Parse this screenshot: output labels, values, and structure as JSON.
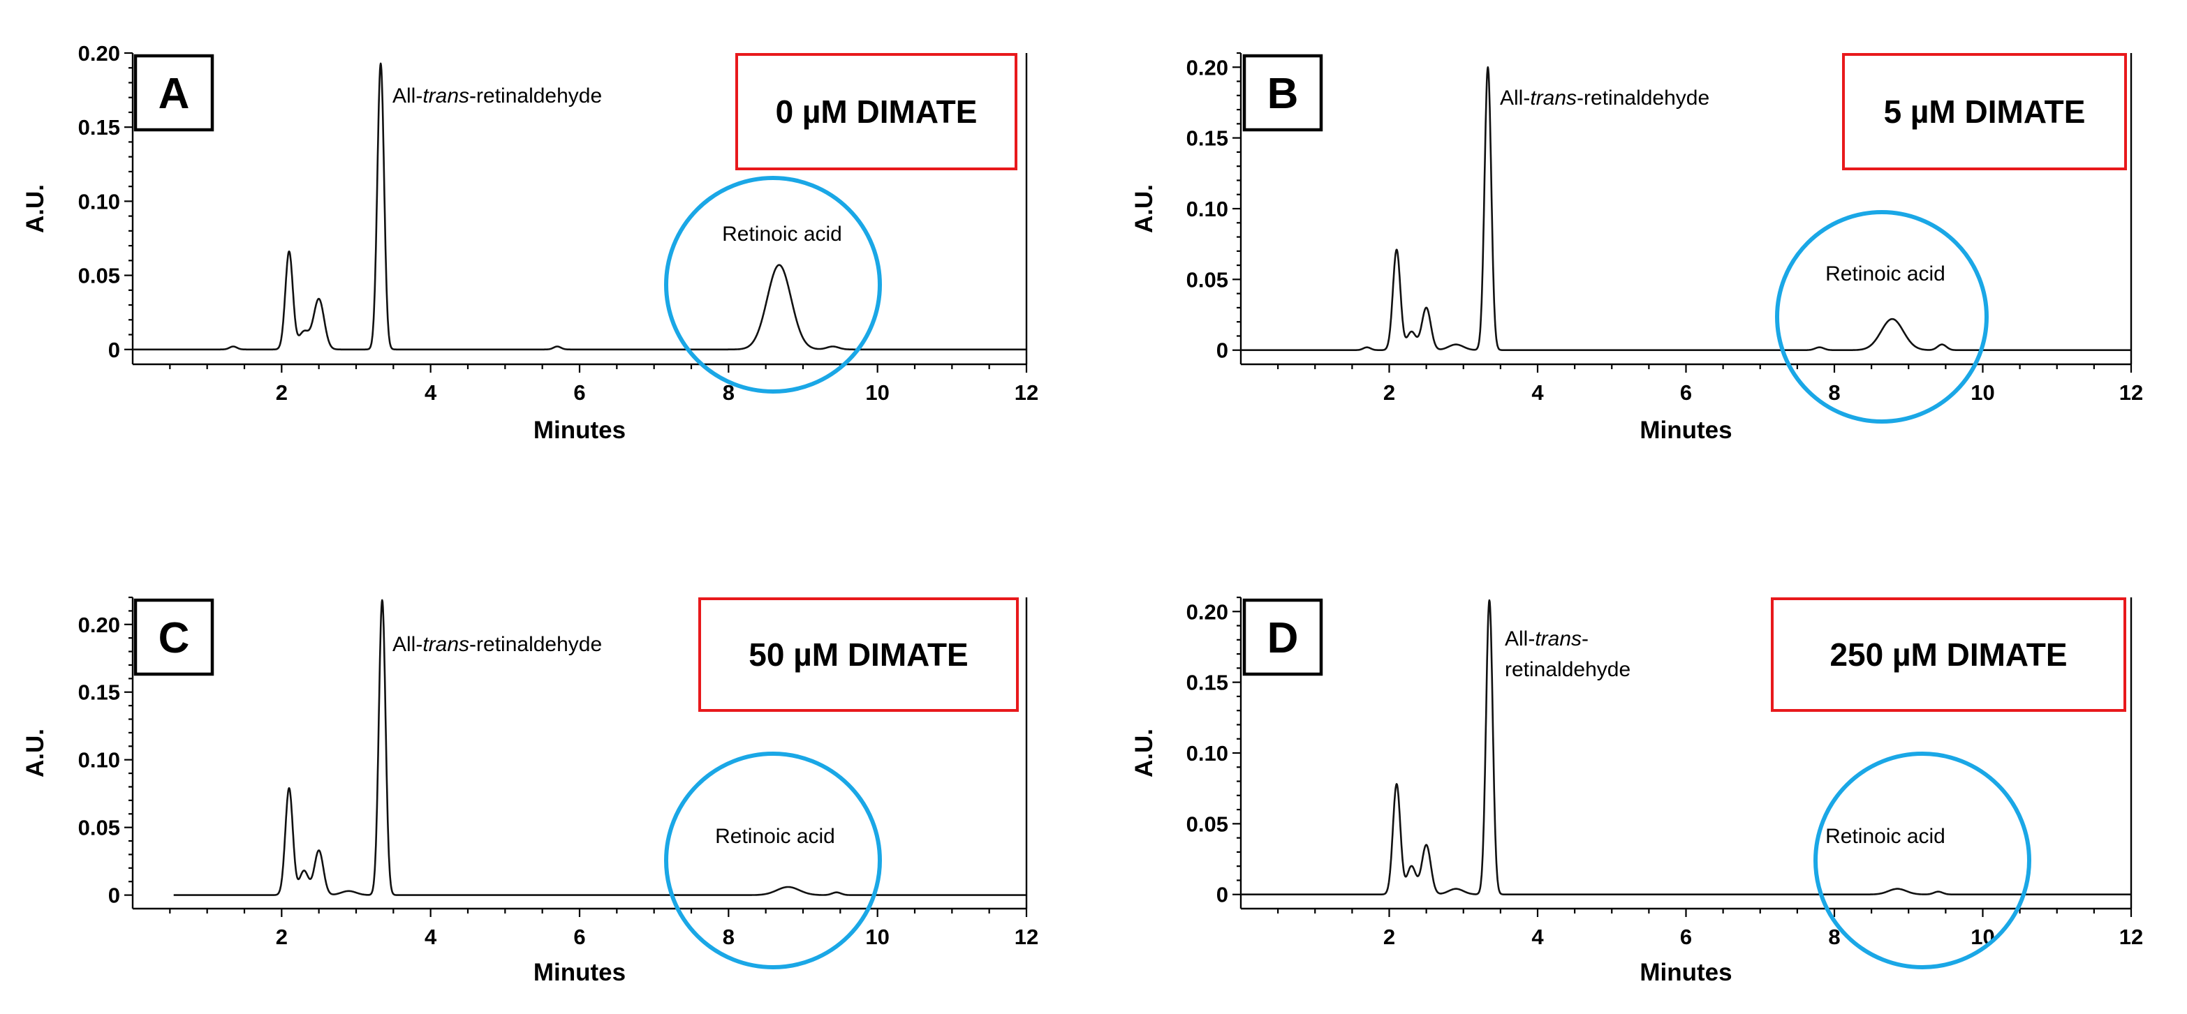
{
  "chart_data": [
    {
      "type": "line",
      "panel": "A",
      "condition": "0 µM DIMATE",
      "xlabel": "Minutes",
      "ylabel": "A.U.",
      "xlim": [
        0,
        12
      ],
      "ylim": [
        -0.01,
        0.2
      ],
      "xticks": [
        "2",
        "4",
        "6",
        "8",
        "10",
        "12"
      ],
      "yticks": [
        "0",
        "0.05",
        "0.10",
        "0.15",
        "0.20"
      ],
      "annotations": {
        "retinaldehyde": [
          "All-",
          "trans",
          "-retinaldehyde"
        ],
        "retinoic_acid": "Retinoic acid"
      },
      "peaks": [
        {
          "center": 1.35,
          "height": 0.002,
          "width": 0.05
        },
        {
          "center": 2.1,
          "height": 0.066,
          "width": 0.05
        },
        {
          "center": 2.3,
          "height": 0.012,
          "width": 0.07
        },
        {
          "center": 2.5,
          "height": 0.034,
          "width": 0.07
        },
        {
          "center": 3.33,
          "height": 0.193,
          "width": 0.045
        },
        {
          "center": 5.7,
          "height": 0.002,
          "width": 0.05
        },
        {
          "center": 8.68,
          "height": 0.057,
          "width": 0.16
        },
        {
          "center": 9.4,
          "height": 0.002,
          "width": 0.08
        }
      ]
    },
    {
      "type": "line",
      "panel": "B",
      "condition": "5 µM DIMATE",
      "xlabel": "Minutes",
      "ylabel": "A.U.",
      "xlim": [
        0,
        12
      ],
      "ylim": [
        -0.01,
        0.21
      ],
      "xticks": [
        "2",
        "4",
        "6",
        "8",
        "10",
        "12"
      ],
      "yticks": [
        "0",
        "0.05",
        "0.10",
        "0.15",
        "0.20"
      ],
      "annotations": {
        "retinaldehyde": [
          "All-",
          "trans",
          "-retinaldehyde"
        ],
        "retinoic_acid": "Retinoic acid"
      },
      "peaks": [
        {
          "center": 1.7,
          "height": 0.002,
          "width": 0.05
        },
        {
          "center": 2.1,
          "height": 0.071,
          "width": 0.05
        },
        {
          "center": 2.3,
          "height": 0.013,
          "width": 0.06
        },
        {
          "center": 2.5,
          "height": 0.03,
          "width": 0.06
        },
        {
          "center": 2.9,
          "height": 0.004,
          "width": 0.1
        },
        {
          "center": 3.33,
          "height": 0.2,
          "width": 0.045
        },
        {
          "center": 7.8,
          "height": 0.002,
          "width": 0.06
        },
        {
          "center": 8.78,
          "height": 0.022,
          "width": 0.15
        },
        {
          "center": 9.45,
          "height": 0.004,
          "width": 0.06
        }
      ]
    },
    {
      "type": "line",
      "panel": "C",
      "condition": "50 µM DIMATE",
      "xlabel": "Minutes",
      "ylabel": "A.U.",
      "xlim": [
        0,
        12
      ],
      "ylim": [
        -0.01,
        0.22
      ],
      "xticks": [
        "2",
        "4",
        "6",
        "8",
        "10",
        "12"
      ],
      "yticks": [
        "0",
        "0.05",
        "0.10",
        "0.15",
        "0.20"
      ],
      "annotations": {
        "retinaldehyde": [
          "All-",
          "trans",
          "-retinaldehyde"
        ],
        "retinoic_acid": "Retinoic acid"
      },
      "peaks": [
        {
          "center": 2.1,
          "height": 0.079,
          "width": 0.05
        },
        {
          "center": 2.3,
          "height": 0.018,
          "width": 0.06
        },
        {
          "center": 2.5,
          "height": 0.033,
          "width": 0.06
        },
        {
          "center": 2.9,
          "height": 0.003,
          "width": 0.1
        },
        {
          "center": 3.35,
          "height": 0.218,
          "width": 0.045
        },
        {
          "center": 8.8,
          "height": 0.006,
          "width": 0.15
        },
        {
          "center": 9.45,
          "height": 0.002,
          "width": 0.06
        }
      ]
    },
    {
      "type": "line",
      "panel": "D",
      "condition": "250 µM DIMATE",
      "xlabel": "Minutes",
      "ylabel": "A.U.",
      "xlim": [
        0,
        12
      ],
      "ylim": [
        -0.01,
        0.21
      ],
      "xticks": [
        "2",
        "4",
        "6",
        "8",
        "10",
        "12"
      ],
      "yticks": [
        "0",
        "0.05",
        "0.10",
        "0.15",
        "0.20"
      ],
      "annotations": {
        "retinaldehyde": [
          "All-",
          "trans",
          "-",
          "retinaldehyde"
        ],
        "retinoic_acid": "Retinoic acid"
      },
      "peaks": [
        {
          "center": 2.1,
          "height": 0.078,
          "width": 0.05
        },
        {
          "center": 2.3,
          "height": 0.02,
          "width": 0.06
        },
        {
          "center": 2.5,
          "height": 0.035,
          "width": 0.06
        },
        {
          "center": 2.9,
          "height": 0.004,
          "width": 0.1
        },
        {
          "center": 3.35,
          "height": 0.208,
          "width": 0.045
        },
        {
          "center": 8.85,
          "height": 0.004,
          "width": 0.12
        },
        {
          "center": 9.4,
          "height": 0.002,
          "width": 0.06
        }
      ]
    }
  ],
  "colors": {
    "trace": "#111111",
    "condition_box": "#e8191c",
    "retinoic_acid_circle": "#1aa7e6",
    "letter_box": "#000000"
  }
}
